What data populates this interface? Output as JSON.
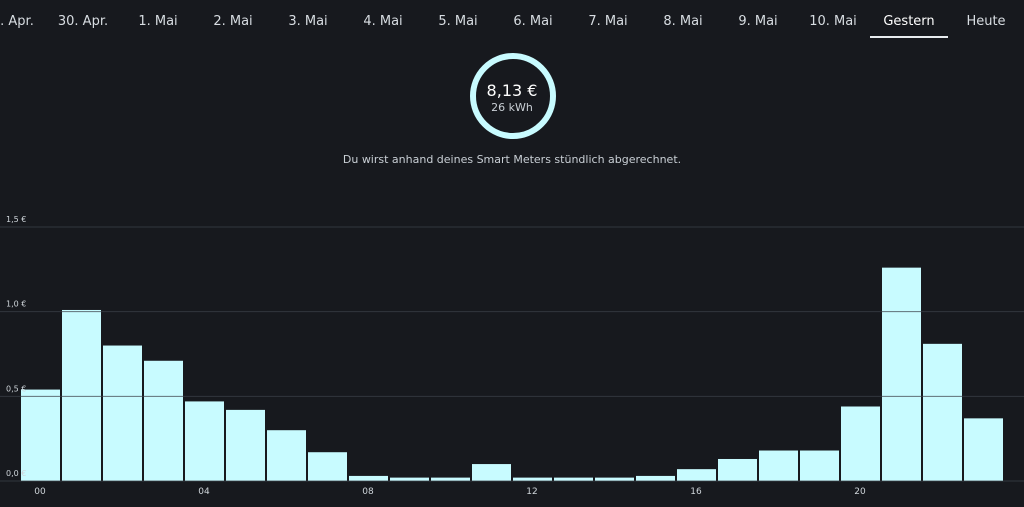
{
  "tabs": [
    {
      "label": ". Apr."
    },
    {
      "label": "30. Apr."
    },
    {
      "label": "1. Mai"
    },
    {
      "label": "2. Mai"
    },
    {
      "label": "3. Mai"
    },
    {
      "label": "4. Mai"
    },
    {
      "label": "5. Mai"
    },
    {
      "label": "6. Mai"
    },
    {
      "label": "7. Mai"
    },
    {
      "label": "8. Mai"
    },
    {
      "label": "9. Mai"
    },
    {
      "label": "10. Mai"
    },
    {
      "label": "Gestern"
    },
    {
      "label": "Heute"
    }
  ],
  "selected_tab": "Gestern",
  "summary": {
    "amount": "8,13 €",
    "energy": "26 kWh",
    "note": "Du wirst anhand deines Smart Meters stündlich abgerechnet."
  },
  "colors": {
    "background": "#17191e",
    "bar_fill": "#c8fbff",
    "text": "#e8ecef"
  },
  "chart_data": {
    "type": "bar",
    "x": [
      0,
      1,
      2,
      3,
      4,
      5,
      6,
      7,
      8,
      9,
      10,
      11,
      12,
      13,
      14,
      15,
      16,
      17,
      18,
      19,
      20,
      21,
      22,
      23
    ],
    "values": [
      0.54,
      1.01,
      0.8,
      0.71,
      0.47,
      0.42,
      0.3,
      0.17,
      0.03,
      0.02,
      0.02,
      0.1,
      0.02,
      0.02,
      0.02,
      0.03,
      0.07,
      0.13,
      0.18,
      0.18,
      0.44,
      1.26,
      0.81,
      0.37
    ],
    "ylim": [
      0,
      1.5
    ],
    "yticks": [
      {
        "value": 0,
        "label": "0,0 €"
      },
      {
        "value": 0.5,
        "label": "0,5 €"
      },
      {
        "value": 1.0,
        "label": "1,0 €"
      },
      {
        "value": 1.5,
        "label": "1,5 €"
      }
    ],
    "xticks": [
      {
        "value": 0,
        "label": "00"
      },
      {
        "value": 4,
        "label": "04"
      },
      {
        "value": 8,
        "label": "08"
      },
      {
        "value": 12,
        "label": "12"
      },
      {
        "value": 16,
        "label": "16"
      },
      {
        "value": 20,
        "label": "20"
      }
    ],
    "grid": true
  }
}
